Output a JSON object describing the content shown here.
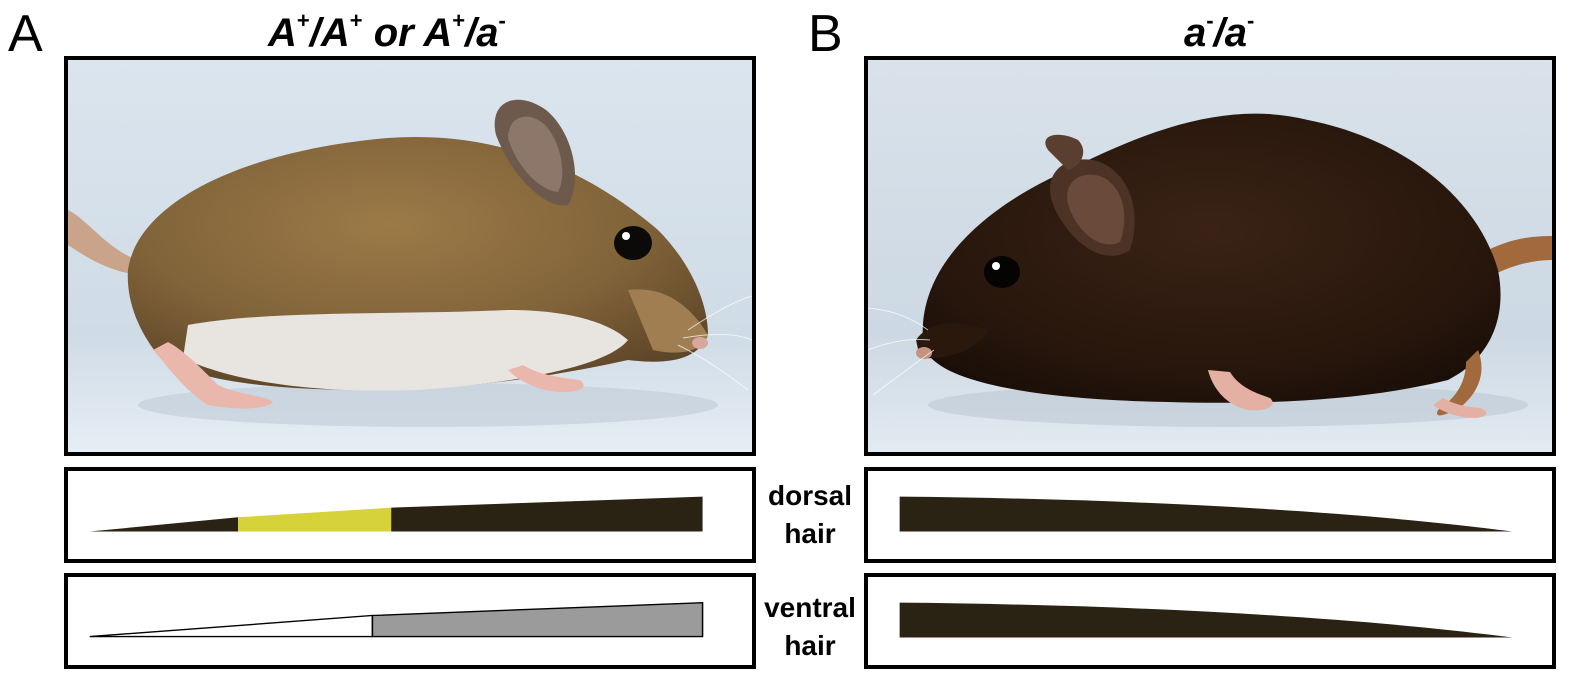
{
  "panels": {
    "A": {
      "letter": "A",
      "genotype": {
        "p1": "A",
        "s1": "+",
        "p2": "/A",
        "s2": "+",
        "p3": " or A",
        "s3": "+",
        "p4": "/a",
        "s4": "-"
      }
    },
    "B": {
      "letter": "B",
      "genotype": {
        "p1": "a",
        "s1": "-",
        "p2": "/a",
        "s2": "-"
      }
    }
  },
  "labels": {
    "dorsal": {
      "line1": "dorsal",
      "line2": "hair"
    },
    "ventral": {
      "line1": "ventral",
      "line2": "hair"
    }
  },
  "colors": {
    "frame": "#000000",
    "hair_dark": "#2a2213",
    "agouti_band": "#d6d33a",
    "ventral_gray": "#9b9b9b",
    "ventral_white": "#ffffff",
    "agouti_mouse_fur": "#8a6a3e",
    "agouti_belly": "#e9e5df",
    "nonagouti_mouse_fur": "#2e1a10",
    "photo_background": "#d9e3ec"
  },
  "icons": {
    "A_photo": "agouti-mouse-photo",
    "B_photo": "black-mouse-photo"
  }
}
